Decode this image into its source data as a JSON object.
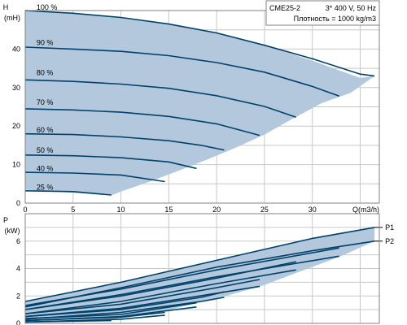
{
  "chart_data": [
    {
      "type": "line",
      "title": "",
      "info": {
        "model": "CME25-2",
        "supply": "3* 400 V, 50 Hz",
        "density": "Плотность = 1000 kg/m3"
      },
      "ylabel_lines": [
        "H",
        "(mH)"
      ],
      "xlabel": "Q(m3/h)",
      "xlim": [
        0,
        37
      ],
      "ylim": [
        0,
        50
      ],
      "x_ticks": [
        0,
        5,
        10,
        15,
        20,
        25,
        30
      ],
      "y_ticks": [
        0,
        10,
        20,
        30,
        40
      ],
      "grid": true,
      "envelope": [
        [
          0,
          50
        ],
        [
          5,
          49.3
        ],
        [
          10,
          48.2
        ],
        [
          15,
          46.5
        ],
        [
          20,
          44.2
        ],
        [
          25,
          41.0
        ],
        [
          30,
          37.0
        ],
        [
          35,
          32.5
        ],
        [
          36.5,
          33.0
        ],
        [
          34,
          28.6
        ],
        [
          31,
          26.0
        ],
        [
          28,
          22.0
        ],
        [
          25,
          17.8
        ],
        [
          22,
          14.4
        ],
        [
          19,
          11.3
        ],
        [
          16,
          8.4
        ],
        [
          13,
          5.6
        ],
        [
          10,
          3.0
        ],
        [
          9,
          2.0
        ],
        [
          0,
          3.5
        ]
      ],
      "series": [
        {
          "name": "100 %",
          "label_x": 0.5,
          "label_y": 50.2,
          "x": [
            0,
            5,
            10,
            15,
            20,
            25,
            30,
            35,
            36.5
          ],
          "y": [
            50,
            49.3,
            48.2,
            46.5,
            44.2,
            41.0,
            37.5,
            33.5,
            33.0
          ]
        },
        {
          "name": "90 %",
          "label_x": 0.5,
          "label_y": 41.0,
          "x": [
            0,
            5,
            10,
            15,
            20,
            25,
            30,
            32.8
          ],
          "y": [
            40.5,
            40.0,
            39.4,
            38.3,
            36.5,
            34.0,
            30.3,
            27.8
          ]
        },
        {
          "name": "80 %",
          "label_x": 0.5,
          "label_y": 33.2,
          "x": [
            0,
            5,
            10,
            15,
            20,
            25,
            28.3
          ],
          "y": [
            32.0,
            31.6,
            30.9,
            29.8,
            27.9,
            25.1,
            22.3
          ]
        },
        {
          "name": "70 %",
          "label_x": 0.5,
          "label_y": 25.5,
          "x": [
            0,
            5,
            10,
            15,
            20,
            24.5
          ],
          "y": [
            24.5,
            24.2,
            23.6,
            22.5,
            20.6,
            17.6
          ]
        },
        {
          "name": "60 %",
          "label_x": 0.5,
          "label_y": 18.4,
          "x": [
            0,
            5,
            10,
            15,
            18.4,
            20.8
          ],
          "y": [
            18.0,
            17.8,
            17.2,
            16.2,
            15.0,
            13.8
          ]
        },
        {
          "name": "50 %",
          "label_x": 0.5,
          "label_y": 13.1,
          "x": [
            0,
            5,
            10,
            15,
            17.9
          ],
          "y": [
            12.5,
            12.3,
            11.8,
            10.7,
            9.0
          ]
        },
        {
          "name": "40 %",
          "label_x": 0.5,
          "label_y": 8.3,
          "x": [
            0,
            5,
            10,
            14.6
          ],
          "y": [
            8.0,
            7.8,
            7.3,
            5.6
          ]
        },
        {
          "name": "25 %",
          "label_x": 0.5,
          "label_y": 3.5,
          "x": [
            0,
            5,
            9.0
          ],
          "y": [
            3.2,
            3.0,
            2.1
          ]
        }
      ]
    },
    {
      "type": "line",
      "title": "",
      "ylabel_lines": [
        "P",
        "(kW)"
      ],
      "xlim": [
        0,
        37
      ],
      "ylim": [
        0,
        8
      ],
      "y_ticks": [
        0,
        2,
        4,
        6
      ],
      "grid": true,
      "band": {
        "upper": {
          "x": [
            0,
            10,
            20,
            30,
            36.5
          ],
          "y": [
            1.6,
            3.0,
            4.6,
            6.2,
            7.0
          ]
        },
        "lower": {
          "x": [
            0,
            9,
            14,
            18,
            21,
            25,
            28,
            33,
            36.5
          ],
          "y": [
            0.3,
            0.3,
            0.8,
            1.5,
            2.0,
            2.8,
            3.6,
            4.9,
            6.0
          ]
        }
      },
      "series": [
        {
          "name": "P1",
          "label_x": 37.2,
          "label_y": 7.0,
          "x": [
            0,
            10,
            20,
            30,
            36.5
          ],
          "y": [
            1.6,
            3.0,
            4.6,
            6.2,
            7.0
          ]
        },
        {
          "name": "P2",
          "label_x": 37.2,
          "label_y": 6.0,
          "x": [
            0,
            10,
            20,
            30,
            36.5
          ],
          "y": [
            1.2,
            2.6,
            4.1,
            5.3,
            6.0
          ]
        },
        {
          "name": "",
          "x": [
            0,
            10,
            20,
            32.8
          ],
          "y": [
            1.3,
            2.5,
            3.9,
            5.5
          ]
        },
        {
          "name": "",
          "x": [
            0,
            10,
            20,
            32.8
          ],
          "y": [
            1.0,
            2.1,
            3.4,
            4.9
          ]
        },
        {
          "name": "",
          "x": [
            0,
            10,
            20,
            28.3
          ],
          "y": [
            1.0,
            2.0,
            3.3,
            4.5
          ]
        },
        {
          "name": "",
          "x": [
            0,
            10,
            20,
            28.3
          ],
          "y": [
            0.7,
            1.6,
            2.9,
            3.9
          ]
        },
        {
          "name": "",
          "x": [
            0,
            10,
            20,
            24.5
          ],
          "y": [
            0.7,
            1.4,
            2.6,
            3.2
          ]
        },
        {
          "name": "",
          "x": [
            0,
            10,
            20,
            24.5
          ],
          "y": [
            0.5,
            1.1,
            2.2,
            2.7
          ]
        },
        {
          "name": "",
          "x": [
            0,
            10,
            18.4,
            20.8
          ],
          "y": [
            0.5,
            1.0,
            1.9,
            2.3
          ]
        },
        {
          "name": "",
          "x": [
            0,
            10,
            18.4,
            20.8
          ],
          "y": [
            0.3,
            0.8,
            1.6,
            1.9
          ]
        },
        {
          "name": "",
          "x": [
            0,
            10,
            17.9
          ],
          "y": [
            0.35,
            0.65,
            1.5
          ]
        },
        {
          "name": "",
          "x": [
            0,
            10,
            17.9
          ],
          "y": [
            0.2,
            0.5,
            1.2
          ]
        },
        {
          "name": "",
          "x": [
            0,
            10,
            14.6
          ],
          "y": [
            0.2,
            0.45,
            0.8
          ]
        },
        {
          "name": "",
          "x": [
            0,
            10,
            14.6
          ],
          "y": [
            0.1,
            0.3,
            0.6
          ]
        },
        {
          "name": "",
          "x": [
            0,
            9.0
          ],
          "y": [
            0.1,
            0.2
          ]
        }
      ]
    }
  ]
}
